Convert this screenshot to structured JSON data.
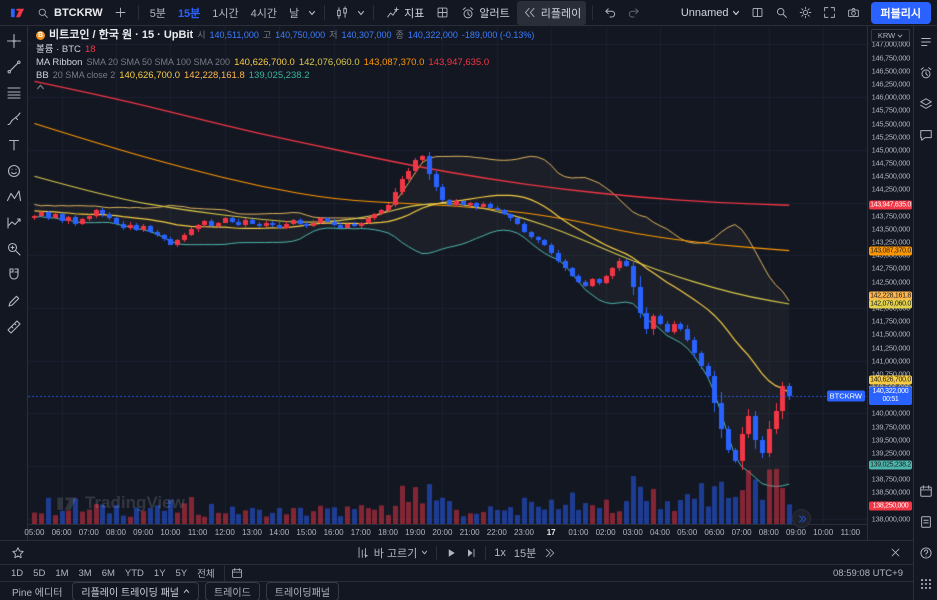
{
  "header": {
    "symbol": "BTCKRW",
    "timeframes": [
      "5분",
      "15분",
      "1시간",
      "4시간",
      "날"
    ],
    "active_timeframe": "15분",
    "indicators_label": "지표",
    "alert_label": "알러트",
    "replay_label": "리플레이",
    "layout_name": "Unnamed",
    "publish_label": "퍼블리시"
  },
  "legend": {
    "title": "비트코인 / 한국 원 · 15 · UpBit",
    "ohlc": {
      "o_label": "시",
      "o": "140,511,000",
      "h_label": "고",
      "h": "140,750,000",
      "l_label": "저",
      "l": "140,307,000",
      "c_label": "종",
      "c": "140,322,000",
      "change": "-189,000 (-0.13%)"
    },
    "volume": {
      "title": "볼륨 · BTC",
      "value": "18"
    },
    "ma_ribbon": {
      "title": "MA Ribbon",
      "params": "SMA 20 SMA 50 SMA 100 SMA 200",
      "values": [
        "140,626,700.0",
        "142,076,060.0",
        "143,087,370.0",
        "143,947,635.0"
      ]
    },
    "bb": {
      "title": "BB",
      "params": "20 SMA close 2",
      "values": [
        "140,626,700.0",
        "142,228,161.8",
        "139,025,238.2"
      ]
    }
  },
  "watermark": "TradingView",
  "replay_bar": {
    "select_label": "바 고르기",
    "speed": "1x",
    "interval": "15분"
  },
  "range_bar": {
    "ranges": [
      "1D",
      "5D",
      "1M",
      "3M",
      "6M",
      "YTD",
      "1Y",
      "5Y",
      "전체"
    ],
    "clock": "08:59:08 UTC+9"
  },
  "tabs": [
    "Pine 에디터",
    "리플레이 트레이딩 패널",
    "트레이드",
    "트레이딩패널"
  ],
  "icons": {
    "header": [
      "search",
      "plus",
      "caret-down",
      "candles",
      "indicators-fx",
      "templates-grid",
      "alarm-clock",
      "replay-rewind",
      "undo",
      "redo",
      "layout-grid",
      "quick-search",
      "settings-gear",
      "fullscreen",
      "camera"
    ],
    "left_toolbar": [
      "crosshair",
      "trend-line",
      "fib-retracement",
      "brush",
      "text",
      "emoji",
      "pattern",
      "forecast",
      "zoom",
      "magnet",
      "pencil",
      "ruler",
      "star"
    ],
    "right_sidebar": [
      "watchlist",
      "alerts",
      "object-tree",
      "chat",
      "calendar",
      "notes",
      "help",
      "apps-grid"
    ],
    "replay_bar": [
      "select-bar",
      "play",
      "step-forward",
      "jump-to-end",
      "close"
    ]
  },
  "chart_data": {
    "type": "candlestick",
    "symbol": "BTCKRW",
    "exchange": "UpBit",
    "interval_minutes": 15,
    "up_color": "#f23645",
    "down_color": "#2962ff",
    "price_axis": {
      "currency": "KRW",
      "min": 138000000,
      "max": 147000000,
      "tick_step": 250000,
      "view_max": 147350000,
      "view_min": 137900000
    },
    "bars_per_label": 4,
    "time_labels": [
      "05:00",
      "06:00",
      "07:00",
      "08:00",
      "09:00",
      "10:00",
      "11:00",
      "12:00",
      "13:00",
      "14:00",
      "15:00",
      "16:00",
      "17:00",
      "18:00",
      "19:00",
      "20:00",
      "21:00",
      "22:00",
      "23:00",
      "17",
      "01:00",
      "02:00",
      "03:00",
      "04:00",
      "05:00",
      "06:00",
      "07:00",
      "08:00",
      "09:00",
      "10:00",
      "11:00"
    ],
    "first_open": 143700000,
    "closes": [
      143750000,
      143820000,
      143700000,
      143780000,
      143650000,
      143720000,
      143600000,
      143680000,
      143750000,
      143850000,
      143780000,
      143700000,
      143600000,
      143520000,
      143580000,
      143480000,
      143550000,
      143450000,
      143380000,
      143300000,
      143200000,
      143280000,
      143380000,
      143500000,
      143580000,
      143650000,
      143550000,
      143620000,
      143700000,
      143640000,
      143580000,
      143660000,
      143600000,
      143550000,
      143620000,
      143580000,
      143520000,
      143600000,
      143660000,
      143600000,
      143550000,
      143620000,
      143700000,
      143640000,
      143580000,
      143520000,
      143600000,
      143550000,
      143620000,
      143700000,
      143780000,
      143850000,
      143950000,
      144200000,
      144450000,
      144600000,
      144800000,
      144880000,
      144550000,
      144300000,
      144050000,
      143950000,
      144020000,
      143960000,
      144000000,
      143920000,
      143980000,
      143900000,
      143850000,
      143780000,
      143700000,
      143600000,
      143450000,
      143350000,
      143280000,
      143200000,
      143050000,
      142900000,
      142750000,
      142600000,
      142500000,
      142420000,
      142550000,
      142480000,
      142600000,
      142750000,
      142900000,
      142800000,
      142400000,
      141900000,
      141600000,
      141850000,
      141700000,
      141550000,
      141700000,
      141600000,
      141400000,
      141150000,
      140900000,
      140700000,
      140200000,
      139700000,
      139300000,
      139100000,
      139600000,
      139950000,
      139500000,
      139250000,
      139700000,
      140050000,
      140511000,
      140322000
    ],
    "last_price": 140322000,
    "overlays": {
      "sma20": {
        "period": 20,
        "color": "#f7cc45"
      },
      "sma50": {
        "color": "#d9c84b",
        "anchors": [
          [
            0,
            144500000
          ],
          [
            0.1,
            144100000
          ],
          [
            0.2,
            143850000
          ],
          [
            0.3,
            143680000
          ],
          [
            0.35,
            143620000
          ],
          [
            0.4,
            143640000
          ],
          [
            0.45,
            143750000
          ],
          [
            0.5,
            143950000
          ],
          [
            0.55,
            144000000
          ],
          [
            0.6,
            143880000
          ],
          [
            0.65,
            143700000
          ],
          [
            0.7,
            143450000
          ],
          [
            0.75,
            143150000
          ],
          [
            0.8,
            142850000
          ],
          [
            0.85,
            142600000
          ],
          [
            0.9,
            142380000
          ],
          [
            0.95,
            142200000
          ],
          [
            1,
            142076060
          ]
        ]
      },
      "sma100": {
        "color": "#ff9800",
        "anchors": [
          [
            0,
            145500000
          ],
          [
            0.1,
            145050000
          ],
          [
            0.2,
            144650000
          ],
          [
            0.3,
            144300000
          ],
          [
            0.4,
            144050000
          ],
          [
            0.5,
            143980000
          ],
          [
            0.6,
            143900000
          ],
          [
            0.7,
            143700000
          ],
          [
            0.75,
            143550000
          ],
          [
            0.8,
            143400000
          ],
          [
            0.9,
            143200000
          ],
          [
            1,
            143087370
          ]
        ]
      },
      "sma200": {
        "color": "#f23645",
        "anchors": [
          [
            0,
            146300000
          ],
          [
            0.1,
            146000000
          ],
          [
            0.2,
            145650000
          ],
          [
            0.3,
            145300000
          ],
          [
            0.4,
            145000000
          ],
          [
            0.5,
            144700000
          ],
          [
            0.6,
            144450000
          ],
          [
            0.7,
            144250000
          ],
          [
            0.8,
            144100000
          ],
          [
            0.9,
            144000000
          ],
          [
            1,
            143947635
          ]
        ]
      },
      "bb": {
        "period": 20,
        "mult": 2,
        "upper_color": "#e0b35f",
        "lower_color": "#4db6ac"
      }
    },
    "price_labels": [
      {
        "name": "sma200-price-label",
        "text": "143,947,635.0",
        "value": 143947635,
        "bg": "#f23645",
        "fg": "#ffffff"
      },
      {
        "name": "sma100-price-label",
        "text": "143,087,370.0",
        "value": 143087370,
        "bg": "#ff9800",
        "fg": "#1b1b1b"
      },
      {
        "name": "bb-upper-price-label",
        "text": "142,228,161.8",
        "value": 142228161.8,
        "bg": "#ffb74d",
        "fg": "#1b1b1b"
      },
      {
        "name": "sma50-price-label",
        "text": "142,076,060.0",
        "value": 142076060,
        "bg": "#e3d24b",
        "fg": "#1b1b1b"
      },
      {
        "name": "sma20-price-label",
        "text": "140,626,700.0",
        "value": 140626700,
        "bg": "#f7cc45",
        "fg": "#1b1b1b"
      },
      {
        "name": "bb-basis-price-label",
        "text": "140,626,700.0",
        "value": 140626700,
        "bg": "#9598a1",
        "fg": "#1b1b1b",
        "offset": 10
      },
      {
        "name": "last-price-label",
        "text": "140,322,000",
        "value": 140322000,
        "bg": "#2962ff",
        "fg": "#ffffff",
        "sub": "00:51",
        "tag": "BTCKRW"
      },
      {
        "name": "bb-lower-price-label",
        "text": "139,025,238.2",
        "value": 139025238.2,
        "bg": "#4db6ac",
        "fg": "#1b1b1b"
      },
      {
        "name": "low-price-label",
        "text": "138,250,000",
        "value": 138250000,
        "bg": "#f23645",
        "fg": "#ffffff"
      }
    ]
  }
}
